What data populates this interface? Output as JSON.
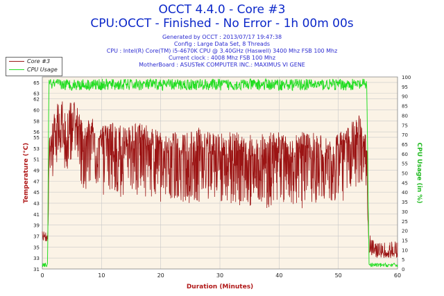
{
  "header": {
    "title": "OCCT 4.4.0 - Core #3",
    "subtitle": "CPU:OCCT - Finished - No Error - 1h 00m 00s",
    "info": [
      "Generated by OCCT : 2013/07/17 19:47:38",
      "Config : Large Data Set, 8 Threads",
      "CPU : Intel(R) Core(TM) i5-4670K CPU @ 3.40GHz (Haswell) 3400 Mhz FSB 100 Mhz",
      "Current clock : 4008 Mhz FSB 100 Mhz",
      "MotherBoard : ASUSTeK COMPUTER INC.: MAXIMUS VI GENE"
    ]
  },
  "colors": {
    "temp": "#9b1414",
    "cpu": "#22dd22",
    "plot_bg": "#fbf3e6",
    "grid": "#c8c8c8",
    "title": "#0b27c9",
    "axis_label": "#b01818",
    "right_label": "#22bb22"
  },
  "chart_data": {
    "type": "line",
    "xlabel": "Duration (Minutes)",
    "ylabel": "Temperature (°C)",
    "y2label": "CPU Usage (in %)",
    "xlim": [
      0,
      60
    ],
    "ylim": [
      31,
      66
    ],
    "y2lim": [
      0,
      100
    ],
    "xticks": [
      0,
      10,
      20,
      30,
      40,
      50,
      60
    ],
    "yticks": [
      31,
      33,
      35,
      37,
      39,
      41,
      43,
      45,
      47,
      49,
      51,
      53,
      55,
      56,
      58,
      60,
      62,
      63,
      65
    ],
    "y2ticks": [
      0,
      5,
      10,
      15,
      20,
      25,
      30,
      35,
      40,
      45,
      50,
      55,
      60,
      65,
      70,
      75,
      80,
      85,
      90,
      95,
      100
    ],
    "grid": true,
    "legend_position": "top-left",
    "series": [
      {
        "name": "Core #3",
        "axis": "left",
        "x": [
          0,
          0.4,
          0.9,
          1.2,
          2,
          3,
          4,
          5,
          6,
          7,
          8,
          9,
          10,
          12,
          14,
          16,
          18,
          20,
          22,
          24,
          26,
          28,
          30,
          32,
          34,
          36,
          38,
          40,
          42,
          44,
          46,
          48,
          50,
          52,
          53,
          54,
          54.8,
          55.2,
          56,
          58,
          60
        ],
        "mid": [
          37,
          37,
          37,
          52,
          56,
          58,
          55,
          58,
          57,
          53,
          55,
          54,
          53,
          54,
          53,
          54,
          53,
          52,
          53,
          52,
          53,
          52,
          52,
          52,
          52,
          51,
          52,
          52,
          51,
          52,
          52,
          51,
          52,
          53,
          55,
          54,
          52,
          35,
          34,
          34,
          34
        ],
        "low": [
          36,
          36,
          36,
          45,
          49,
          52,
          48,
          50,
          49,
          45,
          46,
          45,
          44,
          45,
          43,
          44,
          44,
          43,
          44,
          43,
          43,
          43,
          43,
          43,
          42,
          42,
          42,
          43,
          43,
          42,
          43,
          43,
          43,
          44,
          46,
          45,
          44,
          34,
          33,
          33,
          33
        ],
        "high": [
          38,
          38,
          38,
          56,
          61,
          63,
          60,
          62,
          61,
          58,
          59,
          58,
          57,
          58,
          57,
          58,
          57,
          56,
          56,
          56,
          57,
          56,
          56,
          56,
          56,
          55,
          56,
          56,
          55,
          56,
          56,
          55,
          56,
          57,
          60,
          58,
          56,
          38,
          36,
          36,
          36
        ]
      },
      {
        "name": "CPU Usage",
        "axis": "right",
        "x": [
          0,
          0.9,
          1.1,
          2,
          30,
          54.8,
          55.2,
          60
        ],
        "mid": [
          2,
          2,
          98,
          96,
          96,
          96,
          2,
          2
        ],
        "low": [
          1,
          1,
          94,
          93,
          93,
          93,
          1,
          1
        ],
        "high": [
          3,
          3,
          99,
          99,
          99,
          99,
          3,
          3
        ]
      }
    ]
  }
}
